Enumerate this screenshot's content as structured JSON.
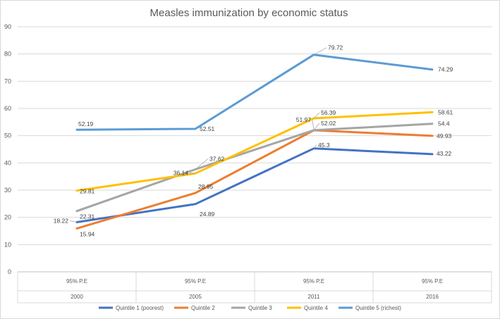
{
  "chart_data": {
    "type": "line",
    "title": "Measles immunization by economic status",
    "xlabel": "",
    "ylabel": "",
    "ylim": [
      0,
      90
    ],
    "yticks": [
      0,
      10,
      20,
      30,
      40,
      50,
      60,
      70,
      80,
      90
    ],
    "grid": true,
    "legend_position": "bottom",
    "categories": [
      {
        "estimate": "95% P.E",
        "year": "2000"
      },
      {
        "estimate": "95% P.E",
        "year": "2005"
      },
      {
        "estimate": "95% P.E",
        "year": "2011"
      },
      {
        "estimate": "95% P.E",
        "year": "2016"
      }
    ],
    "series": [
      {
        "name": "Quintile 1 (poorest)",
        "color": "#4472c4",
        "values": [
          18.22,
          24.89,
          45.3,
          43.22
        ]
      },
      {
        "name": "Quintile 2",
        "color": "#ed7d31",
        "values": [
          15.94,
          28.95,
          51.97,
          49.93
        ]
      },
      {
        "name": "Quintile 3",
        "color": "#a5a5a5",
        "values": [
          22.31,
          37.62,
          52.02,
          54.4
        ]
      },
      {
        "name": "Quintile 4",
        "color": "#ffc000",
        "values": [
          29.81,
          36.14,
          56.39,
          58.61
        ]
      },
      {
        "name": "Quintile 5 (richest)",
        "color": "#5b9bd5",
        "values": [
          52.19,
          52.51,
          79.72,
          74.29
        ]
      }
    ]
  }
}
